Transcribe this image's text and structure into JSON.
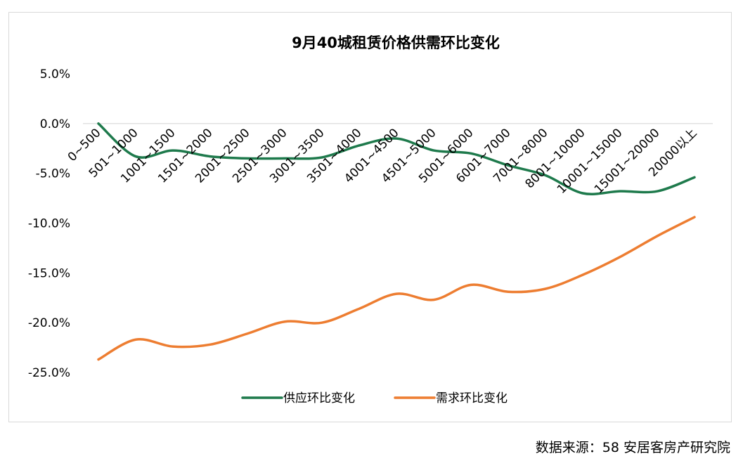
{
  "chart_data": {
    "type": "line",
    "title": "9月40城租赁价格供需环比变化",
    "xlabel": "",
    "ylabel": "",
    "ylim": [
      -0.25,
      0.05
    ],
    "y_ticks": [
      "5.0%",
      "0.0%",
      "-5.0%",
      "-10.0%",
      "-15.0%",
      "-20.0%",
      "-25.0%"
    ],
    "grid": false,
    "legend_position": "bottom",
    "smooth": true,
    "categories": [
      "0~500",
      "501~1000",
      "1001~1500",
      "1501~2000",
      "2001~2500",
      "2501~3000",
      "3001~3500",
      "3501~4000",
      "4001~4500",
      "4501~5000",
      "5001~6000",
      "6001~7000",
      "7001~8000",
      "8001~10000",
      "10001~15000",
      "15001~20000",
      "20000以上"
    ],
    "series": [
      {
        "name": "供应环比变化",
        "color": "#1e7a4c",
        "values": [
          0.0,
          -0.033,
          -0.027,
          -0.033,
          -0.035,
          -0.035,
          -0.034,
          -0.022,
          -0.015,
          -0.027,
          -0.03,
          -0.042,
          -0.052,
          -0.07,
          -0.068,
          -0.068,
          -0.054
        ]
      },
      {
        "name": "需求环比变化",
        "color": "#ed7d31",
        "values": [
          -0.237,
          -0.217,
          -0.224,
          -0.222,
          -0.211,
          -0.199,
          -0.2,
          -0.186,
          -0.171,
          -0.177,
          -0.162,
          -0.169,
          -0.166,
          -0.152,
          -0.134,
          -0.113,
          -0.094
        ]
      }
    ]
  },
  "source": "数据来源：58 安居客房产研究院"
}
